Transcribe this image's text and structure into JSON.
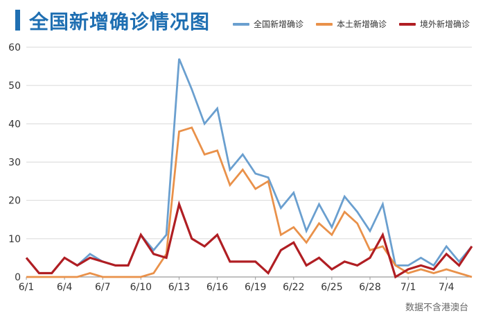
{
  "colors": {
    "accent": "#1f6fb2",
    "grid": "#d9d9d9",
    "axis": "#9a9a9a",
    "tick_text": "#333333"
  },
  "chart_data": {
    "type": "line",
    "title": "全国新增确诊情况图",
    "source": "数据不含港澳台",
    "x": [
      "6/1",
      "6/2",
      "6/3",
      "6/4",
      "6/5",
      "6/6",
      "6/7",
      "6/8",
      "6/9",
      "6/10",
      "6/11",
      "6/12",
      "6/13",
      "6/14",
      "6/15",
      "6/16",
      "6/17",
      "6/18",
      "6/19",
      "6/20",
      "6/21",
      "6/22",
      "6/23",
      "6/24",
      "6/25",
      "6/26",
      "6/27",
      "6/28",
      "6/29",
      "6/30",
      "7/1",
      "7/2",
      "7/3",
      "7/4",
      "7/5",
      "7/6"
    ],
    "x_tick_labels": [
      "6/1",
      "6/4",
      "6/7",
      "6/10",
      "6/13",
      "6/16",
      "6/19",
      "6/22",
      "6/25",
      "6/28",
      "7/1",
      "7/4"
    ],
    "ylim": [
      0,
      60
    ],
    "y_ticks": [
      0,
      10,
      20,
      30,
      40,
      50,
      60
    ],
    "grid": true,
    "legend_position": "top-right",
    "series": [
      {
        "name": "全国新增确诊",
        "color": "#6a9fcf",
        "values": [
          5,
          1,
          1,
          5,
          3,
          6,
          4,
          3,
          3,
          11,
          7,
          11,
          57,
          49,
          40,
          44,
          28,
          32,
          27,
          26,
          18,
          22,
          12,
          19,
          13,
          21,
          17,
          12,
          19,
          3,
          3,
          5,
          3,
          8,
          4,
          8
        ]
      },
      {
        "name": "本土新增确诊",
        "color": "#e9914a",
        "values": [
          0,
          0,
          0,
          0,
          0,
          1,
          0,
          0,
          0,
          0,
          1,
          6,
          38,
          39,
          32,
          33,
          24,
          28,
          23,
          25,
          11,
          13,
          9,
          14,
          11,
          17,
          14,
          7,
          8,
          3,
          1,
          2,
          1,
          2,
          1,
          0
        ]
      },
      {
        "name": "境外新增确诊",
        "color": "#b01e23",
        "values": [
          5,
          1,
          1,
          5,
          3,
          5,
          4,
          3,
          3,
          11,
          6,
          5,
          19,
          10,
          8,
          11,
          4,
          4,
          4,
          1,
          7,
          9,
          3,
          5,
          2,
          4,
          3,
          5,
          11,
          0,
          2,
          3,
          2,
          6,
          3,
          8
        ]
      }
    ]
  }
}
